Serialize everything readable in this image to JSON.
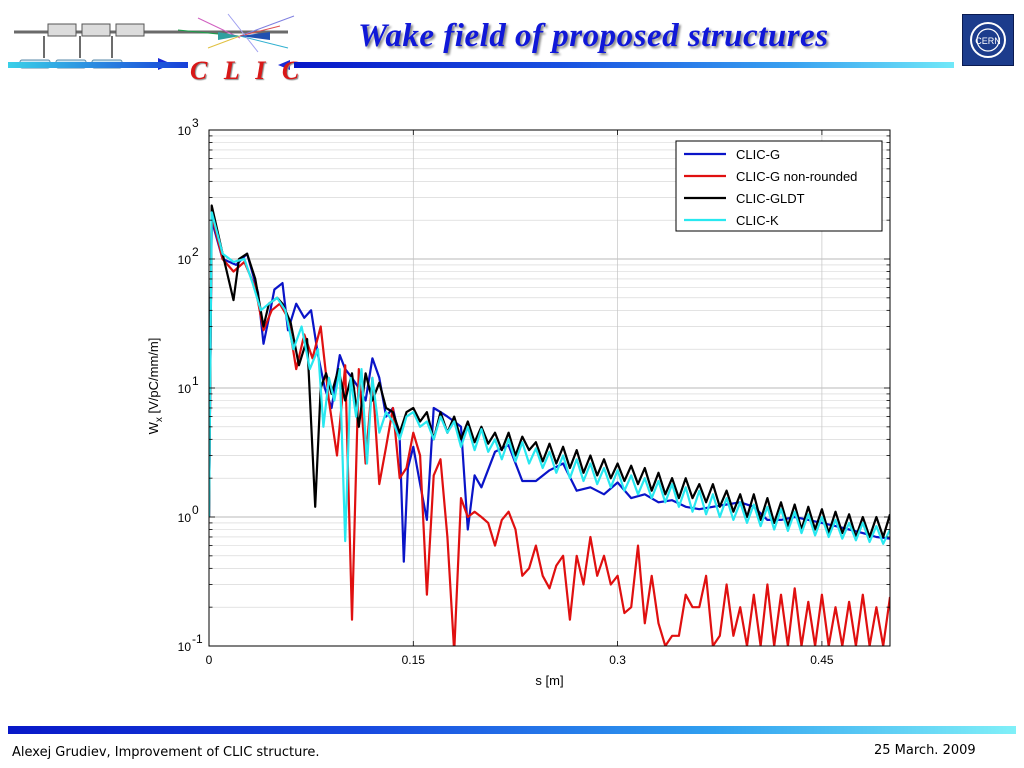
{
  "slide": {
    "title": "Wake field of proposed structures",
    "logo_text": "C L I C",
    "footer_left": "Alexej Grudiev, Improvement of CLIC structure.",
    "footer_right": "25 March. 2009",
    "accent_color": "#1018d8",
    "logo_color": "#d81818"
  },
  "icons": [
    "clic-accelerator-logo-icon",
    "cern-logo-icon"
  ],
  "chart_data": {
    "type": "line",
    "title": "",
    "xlabel": "s [m]",
    "ylabel": "W",
    "ylabel_sub": "x",
    "ylabel_unit": "[V/pC/mm/m]",
    "xlim": [
      0,
      0.5
    ],
    "ylim": [
      0.1,
      1000
    ],
    "yscale": "log",
    "grid": true,
    "legend_position": "top-right",
    "x_ticks": [
      {
        "value": 0,
        "label": "0"
      },
      {
        "value": 0.15,
        "label": "0.15"
      },
      {
        "value": 0.3,
        "label": "0.3"
      },
      {
        "value": 0.45,
        "label": "0.45"
      }
    ],
    "y_ticks": [
      {
        "value": 0.1,
        "base": "10",
        "exp": "-1"
      },
      {
        "value": 1,
        "base": "10",
        "exp": "0"
      },
      {
        "value": 10,
        "base": "10",
        "exp": "1"
      },
      {
        "value": 100,
        "base": "10",
        "exp": "2"
      },
      {
        "value": 1000,
        "base": "10",
        "exp": "3"
      }
    ],
    "series": [
      {
        "name": "CLIC-G",
        "color": "#0a14c8",
        "x": [
          0.0,
          0.002,
          0.01,
          0.02,
          0.028,
          0.036,
          0.04,
          0.044,
          0.048,
          0.054,
          0.058,
          0.064,
          0.07,
          0.075,
          0.08,
          0.085,
          0.09,
          0.096,
          0.1,
          0.105,
          0.11,
          0.115,
          0.12,
          0.125,
          0.13,
          0.135,
          0.14,
          0.143,
          0.146,
          0.15,
          0.155,
          0.16,
          0.165,
          0.17,
          0.175,
          0.18,
          0.185,
          0.19,
          0.195,
          0.2,
          0.21,
          0.22,
          0.23,
          0.24,
          0.25,
          0.26,
          0.27,
          0.28,
          0.29,
          0.3,
          0.31,
          0.32,
          0.33,
          0.34,
          0.35,
          0.36,
          0.37,
          0.38,
          0.39,
          0.4,
          0.41,
          0.42,
          0.43,
          0.44,
          0.45,
          0.46,
          0.47,
          0.48,
          0.49,
          0.5
        ],
        "y": [
          1.0,
          200,
          100,
          90,
          110,
          55,
          22,
          35,
          58,
          65,
          28,
          45,
          35,
          40,
          18,
          10,
          7,
          18,
          14,
          12,
          10,
          8,
          17,
          12,
          6,
          7,
          4,
          0.45,
          2.4,
          3.5,
          1.8,
          0.95,
          7,
          6.5,
          6,
          5.5,
          5,
          0.8,
          2.1,
          1.7,
          3.2,
          3.6,
          1.9,
          1.9,
          2.3,
          2.6,
          1.6,
          1.7,
          1.5,
          1.85,
          1.4,
          1.5,
          1.3,
          1.35,
          1.2,
          1.15,
          1.2,
          1.25,
          1.3,
          1.2,
          0.95,
          0.95,
          1.0,
          0.95,
          0.9,
          0.85,
          0.8,
          0.75,
          0.7,
          0.68
        ]
      },
      {
        "name": "CLIC-G non-rounded",
        "color": "#e01010",
        "x": [
          0.0,
          0.002,
          0.01,
          0.018,
          0.026,
          0.034,
          0.04,
          0.046,
          0.052,
          0.058,
          0.064,
          0.07,
          0.076,
          0.082,
          0.088,
          0.094,
          0.1,
          0.105,
          0.11,
          0.115,
          0.12,
          0.125,
          0.13,
          0.135,
          0.14,
          0.145,
          0.15,
          0.155,
          0.16,
          0.165,
          0.17,
          0.175,
          0.18,
          0.185,
          0.19,
          0.195,
          0.2,
          0.205,
          0.21,
          0.215,
          0.22,
          0.225,
          0.23,
          0.235,
          0.24,
          0.245,
          0.25,
          0.255,
          0.26,
          0.265,
          0.27,
          0.275,
          0.28,
          0.285,
          0.29,
          0.295,
          0.3,
          0.305,
          0.31,
          0.315,
          0.32,
          0.325,
          0.33,
          0.335,
          0.34,
          0.345,
          0.35,
          0.355,
          0.36,
          0.365,
          0.37,
          0.375,
          0.38,
          0.385,
          0.39,
          0.395,
          0.4,
          0.405,
          0.41,
          0.415,
          0.42,
          0.425,
          0.43,
          0.435,
          0.44,
          0.445,
          0.45,
          0.455,
          0.46,
          0.465,
          0.47,
          0.475,
          0.48,
          0.485,
          0.49,
          0.495,
          0.5
        ],
        "y": [
          1.0,
          220,
          100,
          80,
          95,
          60,
          28,
          40,
          45,
          35,
          14,
          26,
          17,
          30,
          8,
          3.0,
          15,
          0.16,
          14,
          2.6,
          12,
          1.8,
          3.5,
          7,
          2.0,
          2.4,
          4.5,
          3.0,
          0.25,
          2.1,
          2.8,
          0.7,
          0.09,
          1.4,
          1.0,
          1.1,
          1.0,
          0.9,
          0.6,
          0.95,
          1.1,
          0.8,
          0.35,
          0.4,
          0.6,
          0.35,
          0.28,
          0.42,
          0.5,
          0.16,
          0.5,
          0.3,
          0.7,
          0.35,
          0.5,
          0.3,
          0.35,
          0.18,
          0.2,
          0.6,
          0.15,
          0.35,
          0.15,
          0.1,
          0.12,
          0.12,
          0.25,
          0.2,
          0.2,
          0.35,
          0.1,
          0.12,
          0.3,
          0.12,
          0.2,
          0.1,
          0.25,
          0.1,
          0.3,
          0.1,
          0.25,
          0.1,
          0.28,
          0.1,
          0.22,
          0.1,
          0.25,
          0.1,
          0.2,
          0.1,
          0.22,
          0.1,
          0.25,
          0.1,
          0.2,
          0.1,
          0.24
        ]
      },
      {
        "name": "CLIC-GLDT",
        "color": "#000000",
        "x": [
          0.0,
          0.002,
          0.01,
          0.018,
          0.022,
          0.028,
          0.034,
          0.04,
          0.044,
          0.05,
          0.054,
          0.06,
          0.066,
          0.072,
          0.078,
          0.082,
          0.086,
          0.09,
          0.095,
          0.1,
          0.105,
          0.11,
          0.115,
          0.12,
          0.125,
          0.13,
          0.135,
          0.14,
          0.145,
          0.15,
          0.155,
          0.16,
          0.165,
          0.17,
          0.175,
          0.18,
          0.185,
          0.19,
          0.195,
          0.2,
          0.205,
          0.21,
          0.215,
          0.22,
          0.225,
          0.23,
          0.235,
          0.24,
          0.245,
          0.25,
          0.255,
          0.26,
          0.265,
          0.27,
          0.275,
          0.28,
          0.285,
          0.29,
          0.295,
          0.3,
          0.305,
          0.31,
          0.315,
          0.32,
          0.325,
          0.33,
          0.335,
          0.34,
          0.345,
          0.35,
          0.355,
          0.36,
          0.365,
          0.37,
          0.375,
          0.38,
          0.385,
          0.39,
          0.395,
          0.4,
          0.405,
          0.41,
          0.415,
          0.42,
          0.425,
          0.43,
          0.435,
          0.44,
          0.445,
          0.45,
          0.455,
          0.46,
          0.465,
          0.47,
          0.475,
          0.48,
          0.485,
          0.49,
          0.495,
          0.5
        ],
        "y": [
          1.0,
          260,
          110,
          48,
          100,
          110,
          70,
          30,
          45,
          50,
          45,
          32,
          15,
          24,
          1.2,
          10,
          13,
          9,
          14,
          8,
          13,
          5,
          13,
          8,
          11,
          7,
          6.5,
          4.5,
          6.5,
          7,
          5.5,
          6.5,
          4.0,
          6.5,
          4.5,
          6.0,
          4.0,
          5.5,
          3.8,
          5.0,
          3.7,
          4.5,
          3.3,
          4.5,
          3.0,
          4.2,
          3.3,
          3.8,
          2.7,
          3.7,
          2.6,
          3.5,
          2.4,
          3.3,
          2.2,
          3.0,
          2.1,
          2.8,
          2.0,
          2.6,
          1.9,
          2.5,
          1.8,
          2.4,
          1.6,
          2.2,
          1.5,
          2.0,
          1.4,
          2.0,
          1.4,
          1.8,
          1.3,
          1.8,
          1.2,
          1.6,
          1.1,
          1.5,
          1.0,
          1.5,
          0.95,
          1.4,
          0.9,
          1.3,
          0.85,
          1.25,
          0.8,
          1.2,
          0.8,
          1.15,
          0.75,
          1.1,
          0.75,
          1.05,
          0.7,
          1.0,
          0.7,
          1.0,
          0.7,
          1.05
        ]
      },
      {
        "name": "CLIC-K",
        "color": "#28e8f0",
        "x": [
          0.0,
          0.002,
          0.01,
          0.018,
          0.026,
          0.032,
          0.038,
          0.044,
          0.05,
          0.056,
          0.062,
          0.068,
          0.074,
          0.08,
          0.084,
          0.088,
          0.092,
          0.096,
          0.1,
          0.104,
          0.108,
          0.112,
          0.116,
          0.12,
          0.125,
          0.13,
          0.135,
          0.14,
          0.145,
          0.15,
          0.155,
          0.16,
          0.165,
          0.17,
          0.175,
          0.18,
          0.185,
          0.19,
          0.195,
          0.2,
          0.205,
          0.21,
          0.215,
          0.22,
          0.225,
          0.23,
          0.235,
          0.24,
          0.245,
          0.25,
          0.255,
          0.26,
          0.265,
          0.27,
          0.275,
          0.28,
          0.285,
          0.29,
          0.295,
          0.3,
          0.305,
          0.31,
          0.315,
          0.32,
          0.325,
          0.33,
          0.335,
          0.34,
          0.345,
          0.35,
          0.355,
          0.36,
          0.365,
          0.37,
          0.375,
          0.38,
          0.385,
          0.39,
          0.395,
          0.4,
          0.405,
          0.41,
          0.415,
          0.42,
          0.425,
          0.43,
          0.435,
          0.44,
          0.445,
          0.45,
          0.455,
          0.46,
          0.465,
          0.47,
          0.475,
          0.48,
          0.485,
          0.49,
          0.495,
          0.5
        ],
        "y": [
          1.0,
          230,
          110,
          95,
          100,
          65,
          40,
          45,
          50,
          40,
          20,
          30,
          14,
          20,
          5,
          12,
          8,
          14,
          0.65,
          12,
          6,
          14,
          2.6,
          12,
          4.5,
          6.5,
          5.5,
          4.0,
          6.0,
          6.5,
          5.0,
          5.5,
          4.0,
          6.0,
          4.5,
          5.5,
          3.5,
          5.0,
          3.3,
          4.8,
          3.2,
          4.0,
          2.8,
          4.0,
          2.7,
          3.8,
          2.6,
          3.4,
          2.4,
          3.2,
          2.2,
          3.0,
          2.0,
          2.8,
          1.9,
          2.6,
          1.8,
          2.4,
          1.7,
          2.3,
          1.6,
          2.1,
          1.5,
          2.0,
          1.4,
          1.9,
          1.3,
          1.8,
          1.2,
          1.7,
          1.1,
          1.6,
          1.05,
          1.5,
          1.0,
          1.4,
          0.95,
          1.3,
          0.9,
          1.25,
          0.85,
          1.2,
          0.8,
          1.15,
          0.78,
          1.1,
          0.75,
          1.05,
          0.72,
          1.0,
          0.7,
          0.95,
          0.68,
          0.9,
          0.66,
          0.9,
          0.64,
          0.85,
          0.62,
          0.8
        ]
      }
    ]
  }
}
